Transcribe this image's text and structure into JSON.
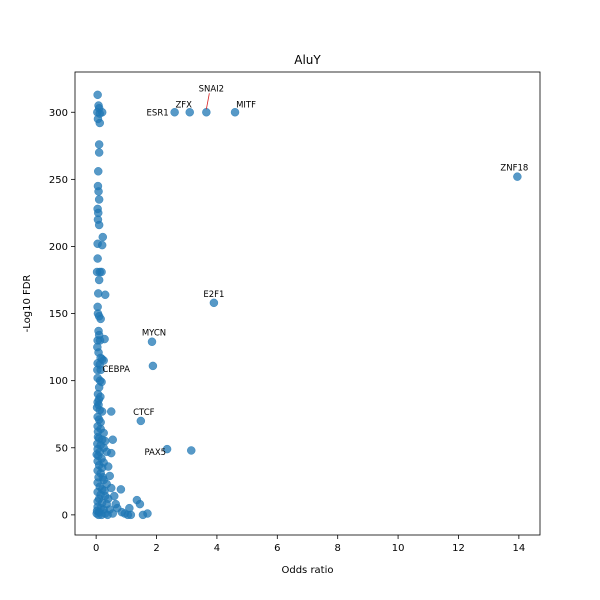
{
  "chart_data": {
    "type": "scatter",
    "title": "AluY",
    "xlabel": "Odds ratio",
    "ylabel": "-Log10 FDR",
    "xlim": [
      -0.7,
      14.7
    ],
    "ylim": [
      -15,
      330
    ],
    "xticks": [
      0,
      2,
      4,
      6,
      8,
      10,
      12,
      14
    ],
    "yticks": [
      0,
      50,
      100,
      150,
      200,
      250,
      300
    ],
    "grid": false,
    "point_color": "#1f77b4",
    "point_alpha": 0.75,
    "series": [
      {
        "points": [
          [
            0.05,
            313
          ],
          [
            0.08,
            305
          ],
          [
            0.1,
            303
          ],
          [
            0.04,
            300
          ],
          [
            0.12,
            299
          ],
          [
            0.2,
            300
          ],
          [
            0.06,
            295
          ],
          [
            0.12,
            292
          ],
          [
            0.1,
            276
          ],
          [
            0.1,
            270
          ],
          [
            0.07,
            256
          ],
          [
            0.06,
            245
          ],
          [
            0.08,
            241
          ],
          [
            0.05,
            228
          ],
          [
            0.07,
            225
          ],
          [
            0.06,
            220
          ],
          [
            0.1,
            216
          ],
          [
            0.22,
            207
          ],
          [
            0.05,
            202
          ],
          [
            0.2,
            201
          ],
          [
            0.05,
            191
          ],
          [
            0.03,
            181
          ],
          [
            0.12,
            181
          ],
          [
            0.18,
            181
          ],
          [
            0.1,
            175
          ],
          [
            0.3,
            164
          ],
          [
            0.05,
            155
          ],
          [
            0.06,
            150
          ],
          [
            0.1,
            148
          ],
          [
            0.15,
            146
          ],
          [
            0.08,
            137
          ],
          [
            0.1,
            134
          ],
          [
            0.05,
            130
          ],
          [
            0.13,
            130
          ],
          [
            0.28,
            131
          ],
          [
            0.08,
            121
          ],
          [
            0.15,
            117
          ],
          [
            0.2,
            116
          ],
          [
            0.25,
            115
          ],
          [
            0.05,
            113
          ],
          [
            0.12,
            112
          ],
          [
            0.04,
            108
          ],
          [
            0.15,
            108
          ],
          [
            0.05,
            102
          ],
          [
            0.18,
            99
          ],
          [
            0.1,
            95
          ],
          [
            0.06,
            90
          ],
          [
            0.14,
            88
          ],
          [
            0.05,
            84
          ],
          [
            0.08,
            82
          ],
          [
            0.03,
            80
          ],
          [
            0.12,
            78
          ],
          [
            0.2,
            77
          ],
          [
            0.5,
            77
          ],
          [
            0.05,
            73
          ],
          [
            0.1,
            71
          ],
          [
            0.15,
            69
          ],
          [
            0.05,
            66
          ],
          [
            0.15,
            64
          ],
          [
            0.25,
            61
          ],
          [
            0.06,
            58
          ],
          [
            0.1,
            57
          ],
          [
            0.2,
            56
          ],
          [
            0.3,
            55
          ],
          [
            0.55,
            56
          ],
          [
            0.04,
            53
          ],
          [
            0.15,
            52
          ],
          [
            0.25,
            50
          ],
          [
            0.05,
            49
          ],
          [
            0.12,
            47
          ],
          [
            0.35,
            47
          ],
          [
            0.5,
            46
          ],
          [
            0.07,
            44
          ],
          [
            0.18,
            42
          ],
          [
            0.05,
            40
          ],
          [
            0.25,
            39
          ],
          [
            0.1,
            37
          ],
          [
            0.2,
            35
          ],
          [
            0.05,
            33
          ],
          [
            0.15,
            31
          ],
          [
            0.45,
            29
          ],
          [
            0.08,
            28
          ],
          [
            0.25,
            26
          ],
          [
            0.05,
            24
          ],
          [
            0.35,
            23
          ],
          [
            0.12,
            21
          ],
          [
            0.2,
            19
          ],
          [
            0.5,
            20
          ],
          [
            0.82,
            19
          ],
          [
            0.05,
            17
          ],
          [
            0.15,
            15
          ],
          [
            0.3,
            14
          ],
          [
            0.1,
            12
          ],
          [
            0.4,
            12
          ],
          [
            0.6,
            14
          ],
          [
            0.05,
            10
          ],
          [
            0.2,
            9
          ],
          [
            0.35,
            8
          ],
          [
            0.65,
            8
          ],
          [
            0.05,
            6
          ],
          [
            0.15,
            5
          ],
          [
            0.25,
            4
          ],
          [
            0.45,
            4
          ],
          [
            0.7,
            5
          ],
          [
            0.03,
            3
          ],
          [
            0.1,
            2
          ],
          [
            0.3,
            1
          ],
          [
            0.55,
            1
          ],
          [
            0.85,
            2
          ],
          [
            0.95,
            1
          ],
          [
            1.05,
            0
          ],
          [
            1.15,
            0
          ],
          [
            1.1,
            5
          ],
          [
            1.35,
            11
          ],
          [
            1.45,
            8
          ],
          [
            1.55,
            0
          ],
          [
            1.7,
            1
          ],
          [
            0.02,
            1
          ],
          [
            0.08,
            0
          ],
          [
            0.18,
            0
          ],
          [
            0.38,
            0
          ],
          [
            0.02,
            45
          ],
          [
            0.06,
            62
          ],
          [
            0.09,
            86
          ],
          [
            0.04,
            125
          ],
          [
            0.07,
            165
          ],
          [
            0.1,
            235
          ],
          [
            0.13,
            100
          ],
          [
            0.22,
            28
          ],
          [
            0.28,
            18
          ],
          [
            0.4,
            36
          ]
        ]
      }
    ],
    "labeled_points": [
      {
        "label": "ESR1",
        "x": 2.6,
        "y": 300
      },
      {
        "label": "ZFX",
        "x": 3.1,
        "y": 300
      },
      {
        "label": "SNAI2",
        "x": 3.65,
        "y": 300
      },
      {
        "label": "MITF",
        "x": 4.6,
        "y": 300
      },
      {
        "label": "ZNF18",
        "x": 13.95,
        "y": 252
      },
      {
        "label": "E2F1",
        "x": 3.9,
        "y": 158
      },
      {
        "label": "MYCN",
        "x": 1.85,
        "y": 129
      },
      {
        "label": "CEBPA",
        "x": 1.88,
        "y": 111
      },
      {
        "label": "CTCF",
        "x": 1.48,
        "y": 70
      },
      {
        "label": "PAX5",
        "x": 2.35,
        "y": 49
      },
      {
        "label": "",
        "x": 3.15,
        "y": 48
      }
    ]
  }
}
